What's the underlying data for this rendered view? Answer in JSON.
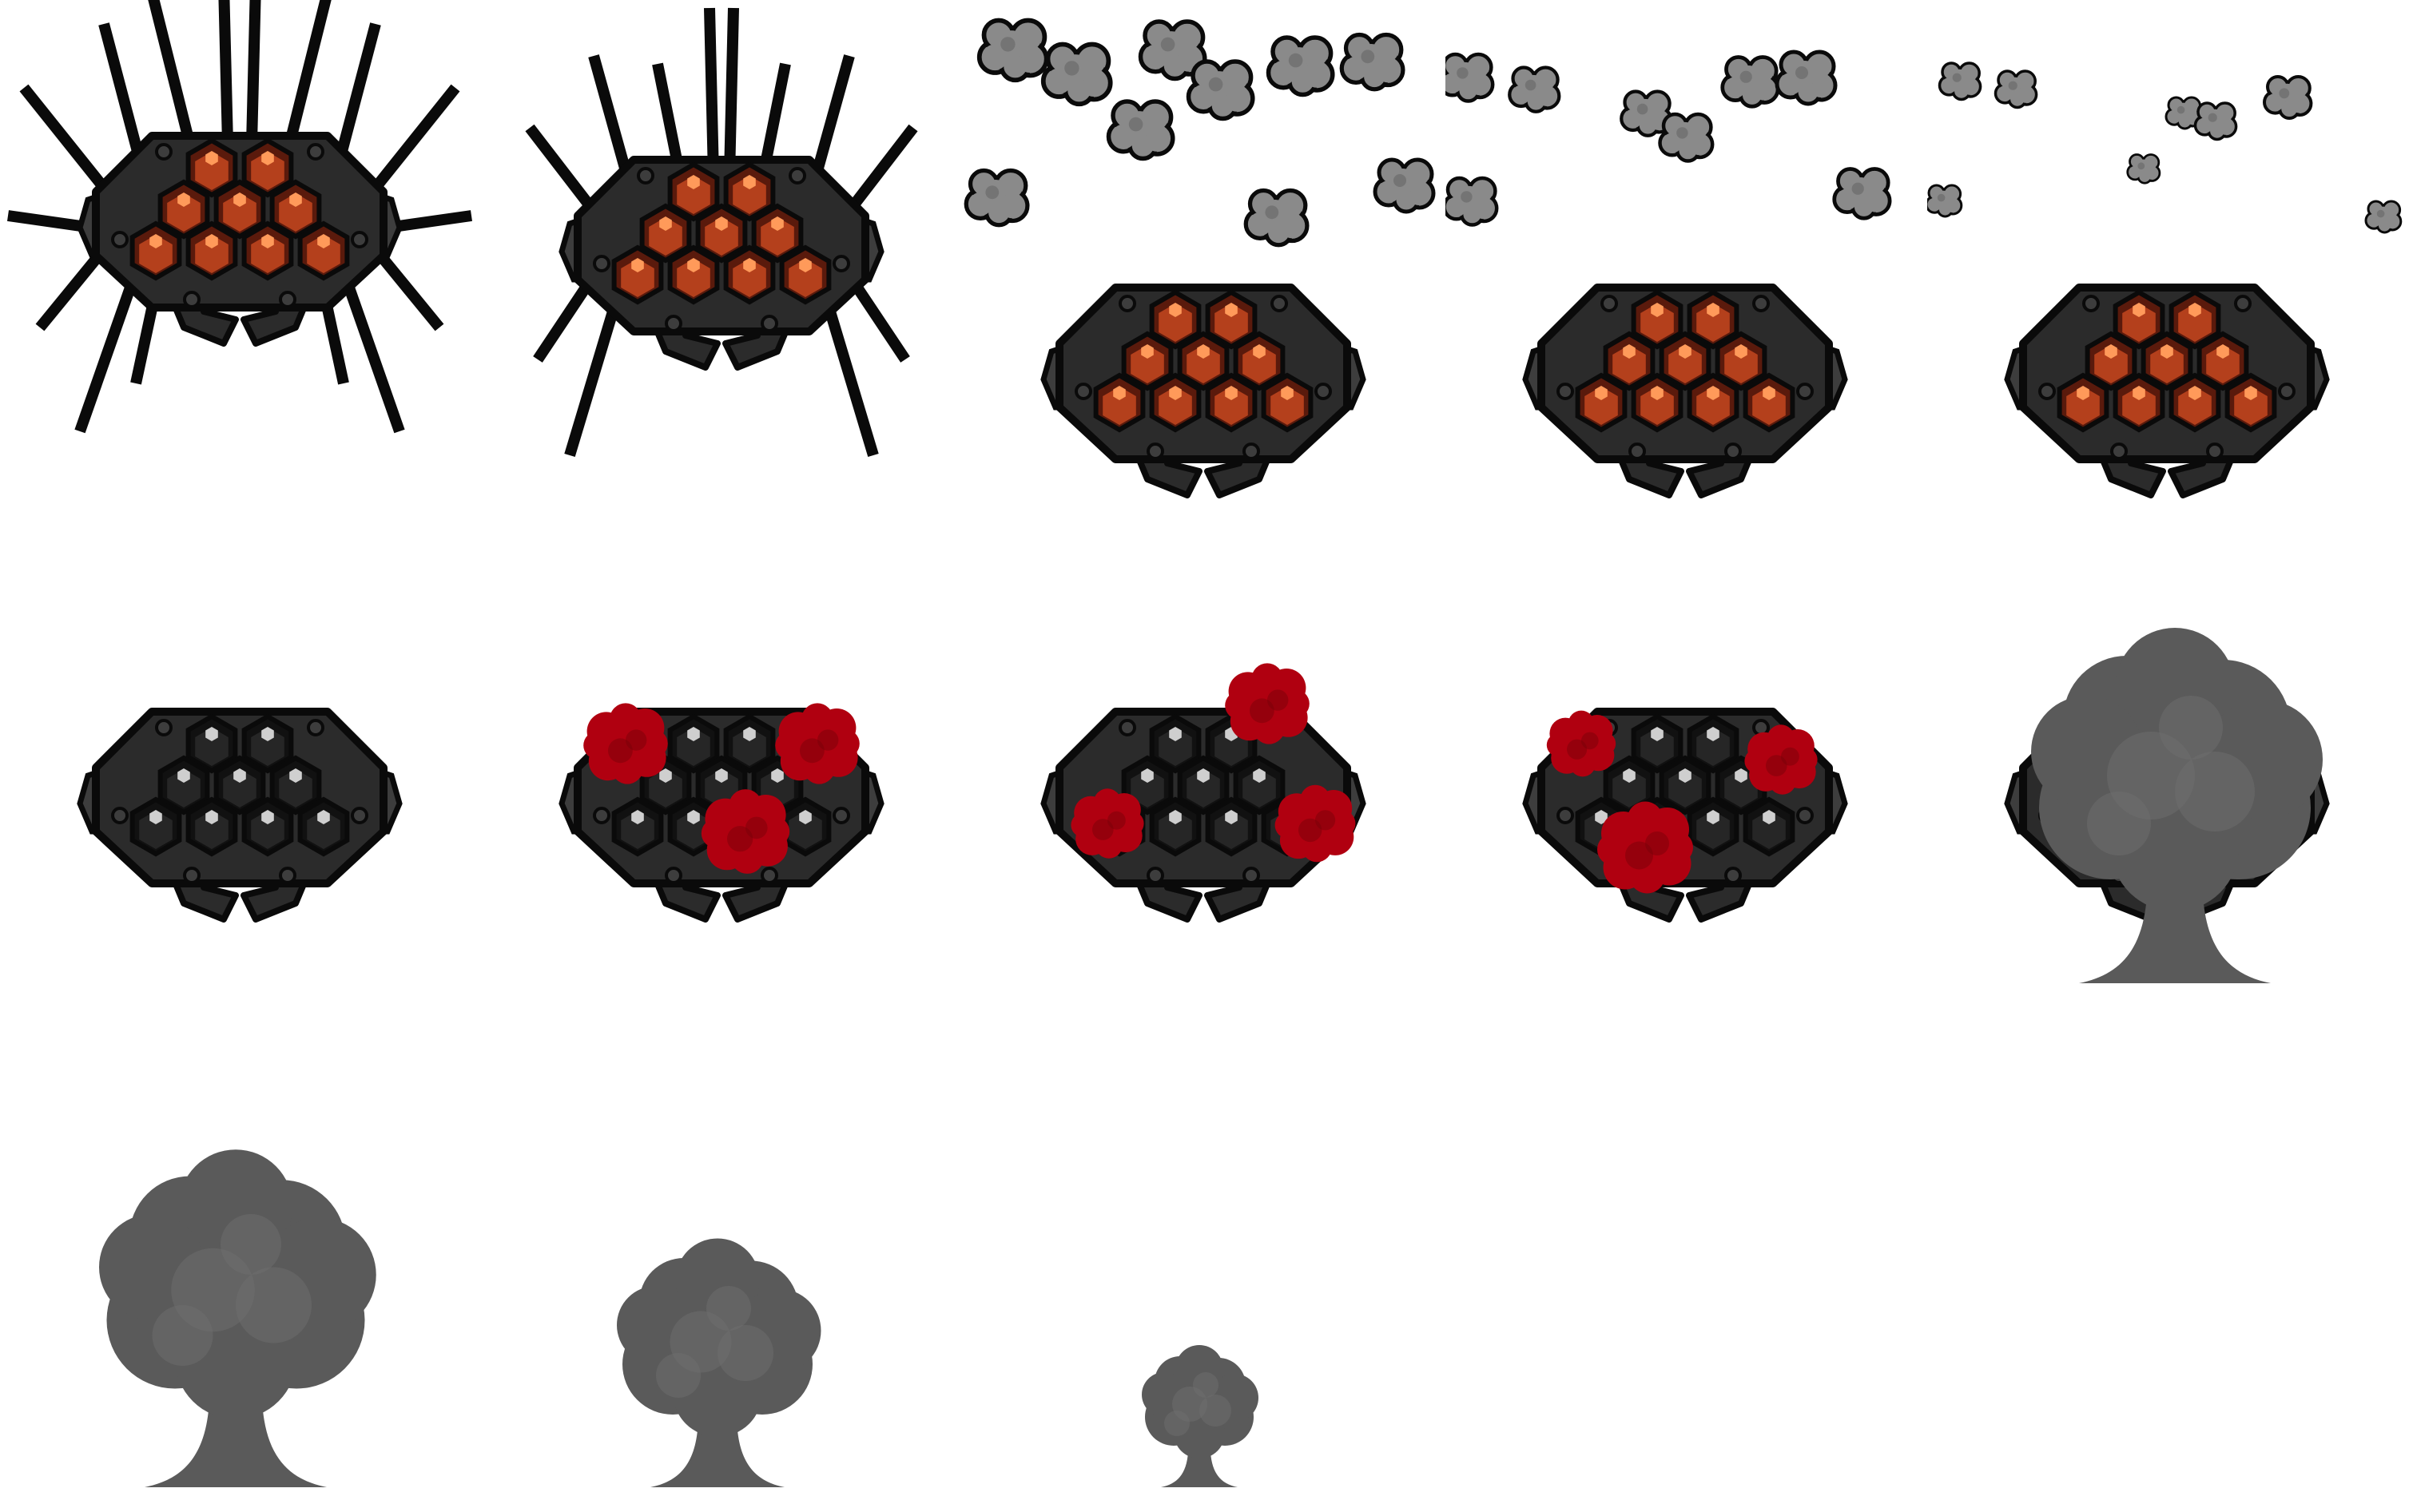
{
  "sheet": {
    "columns": 5,
    "rows": 3,
    "background": "#ffffff"
  },
  "colors": {
    "outline": "#0a0a0a",
    "shell": "#2b2b2b",
    "shell_light": "#3d3d3d",
    "ember": "#b4401c",
    "ember_dark": "#5a1a0c",
    "ember_glow": "#ff9a5a",
    "cold": "#262626",
    "cold_light": "#cfcfcf",
    "blood": "#b00010",
    "blood_dark": "#7a0008",
    "smoke": "#8a8a8a",
    "smoke_dark": "#5e5e5e",
    "cloud": "#5a5a5a",
    "cloud_light": "#6e6e6e"
  },
  "frames": [
    {
      "name": "frame-1-legs-extended",
      "legs": "full",
      "cells": "ember",
      "puffs": "none",
      "splats": [],
      "cloud": 0
    },
    {
      "name": "frame-2-legs-rising",
      "legs": "short",
      "cells": "ember",
      "puffs": "none",
      "splats": [],
      "cloud": 0
    },
    {
      "name": "frame-3-smoke-puffs-large",
      "legs": "none",
      "cells": "ember",
      "puffs": "large",
      "splats": [],
      "cloud": 0
    },
    {
      "name": "frame-4-smoke-puffs-medium",
      "legs": "none",
      "cells": "ember",
      "puffs": "medium",
      "splats": [],
      "cloud": 0
    },
    {
      "name": "frame-5-smoke-puffs-small",
      "legs": "none",
      "cells": "ember",
      "puffs": "small",
      "splats": [],
      "cloud": 0
    },
    {
      "name": "frame-6-cold-cells",
      "legs": "none",
      "cells": "cold",
      "puffs": "none",
      "splats": [],
      "cloud": 0
    },
    {
      "name": "frame-7-blood-splats-a",
      "legs": "none",
      "cells": "cold",
      "puffs": "none",
      "splats": [
        "tl",
        "tr",
        "bc"
      ],
      "cloud": 0
    },
    {
      "name": "frame-8-blood-splats-b",
      "legs": "none",
      "cells": "cold",
      "puffs": "none",
      "splats": [
        "tc",
        "ml",
        "mr"
      ],
      "cloud": 0
    },
    {
      "name": "frame-9-blood-splats-c",
      "legs": "none",
      "cells": "cold",
      "puffs": "none",
      "splats": [
        "tl2",
        "tr2",
        "bl"
      ],
      "cloud": 0
    },
    {
      "name": "frame-10-explosion-cloud",
      "legs": "none",
      "cells": "cold",
      "puffs": "none",
      "splats": [],
      "cloud": 1.0
    },
    {
      "name": "frame-11-cloud-fading",
      "legs": "none",
      "cells": "none",
      "puffs": "none",
      "splats": [],
      "cloud": 0.95
    },
    {
      "name": "frame-12-cloud-shrinking",
      "legs": "none",
      "cells": "none",
      "puffs": "none",
      "splats": [],
      "cloud": 0.7
    },
    {
      "name": "frame-13-cloud-small",
      "legs": "none",
      "cells": "none",
      "puffs": "none",
      "splats": [],
      "cloud": 0.4
    },
    {
      "name": "frame-14-empty",
      "legs": "none",
      "cells": "none",
      "puffs": "none",
      "splats": [],
      "cloud": 0
    },
    {
      "name": "frame-15-empty",
      "legs": "none",
      "cells": "none",
      "puffs": "none",
      "splats": [],
      "cloud": 0
    }
  ]
}
